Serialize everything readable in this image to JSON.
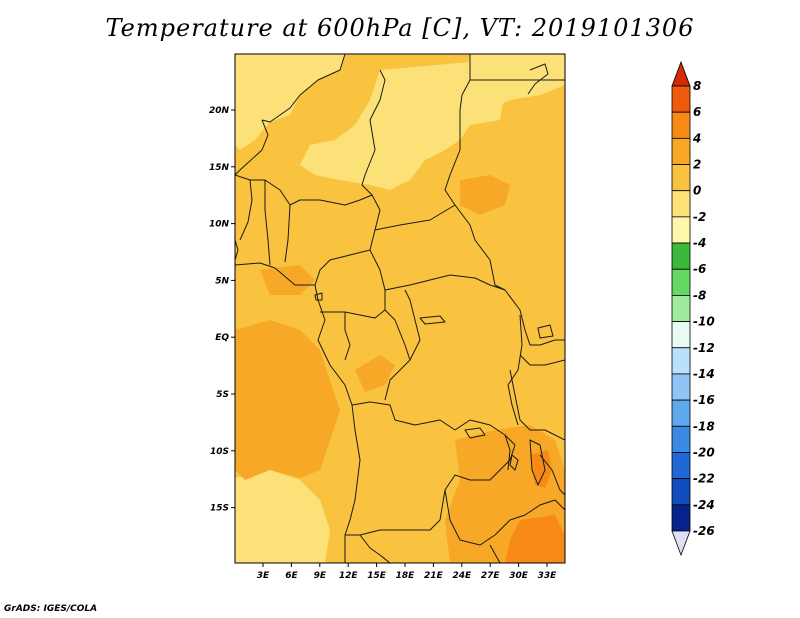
{
  "title": "Temperature at 600hPa [C], VT: 2019101306",
  "credit": "GrADS: IGES/COLA",
  "lon_ticks": [
    "3E",
    "6E",
    "9E",
    "12E",
    "15E",
    "18E",
    "21E",
    "24E",
    "27E",
    "30E",
    "33E"
  ],
  "lat_ticks": [
    "20N",
    "15N",
    "10N",
    "5N",
    "EQ",
    "5S",
    "10S",
    "15S"
  ],
  "colorbar": {
    "labels": [
      "8",
      "6",
      "4",
      "2",
      "0",
      "-2",
      "-4",
      "-6",
      "-8",
      "-10",
      "-12",
      "-14",
      "-16",
      "-18",
      "-20",
      "-22",
      "-24",
      "-26"
    ],
    "colors": [
      "#d52a08",
      "#f05a0c",
      "#f78a17",
      "#f7a826",
      "#f9c23f",
      "#fce178",
      "#fff6ae",
      "#3cb83c",
      "#65d765",
      "#9eeb9e",
      "#e8fcf5",
      "#b9e1fb",
      "#8ec5f4",
      "#5ea8ec",
      "#3a89e3",
      "#2068d6",
      "#0f4cbc",
      "#06238c",
      "#070a5c",
      "#e0e0f4"
    ]
  },
  "field": {
    "base_color": "#f9c23f",
    "warm_color": "#f7a826",
    "warmer_color": "#f78a17",
    "cool_color": "#fce178"
  }
}
